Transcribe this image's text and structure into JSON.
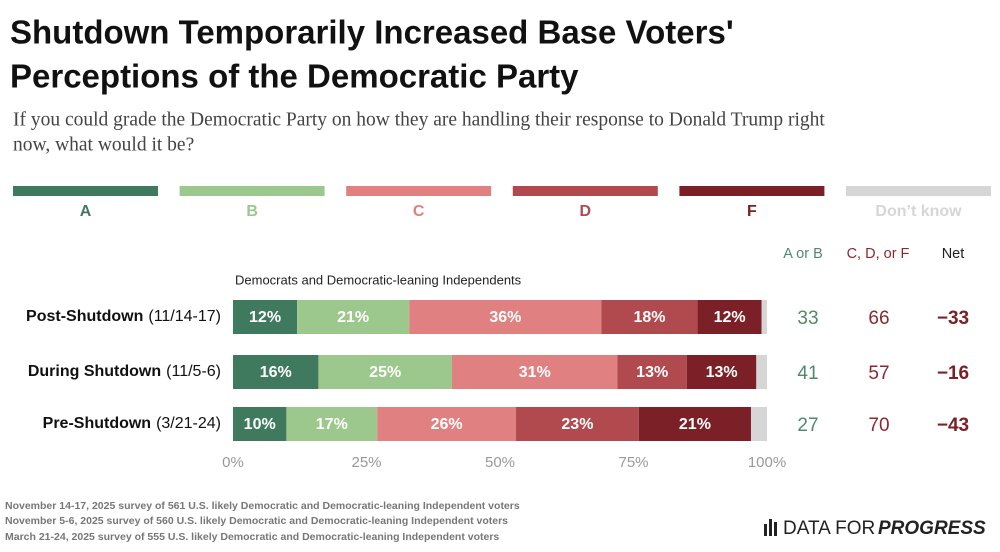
{
  "chart_data": {
    "type": "stacked_bar_horizontal",
    "title": [
      "Shutdown Temporarily Increased Base Voters'",
      "Perceptions of the Democratic Party"
    ],
    "subtitle": [
      "If you could grade the Democratic Party on how they are handling their response to Donald Trump right",
      "now, what would it be?"
    ],
    "group_label": "Democrats and Democratic-leaning Independents",
    "categories": [
      "Post-Shutdown",
      "During Shutdown",
      "Pre-Shutdown"
    ],
    "category_dates": [
      "(11/14-17)",
      "(11/5-6)",
      "(3/21-24)"
    ],
    "series": [
      {
        "name": "A",
        "color": "#3f7a5e",
        "values": [
          12,
          16,
          10
        ],
        "value_labels": [
          "12%",
          "16%",
          "10%"
        ]
      },
      {
        "name": "B",
        "color": "#9dc88d",
        "values": [
          21,
          25,
          17
        ],
        "value_labels": [
          "21%",
          "25%",
          "17%"
        ]
      },
      {
        "name": "C",
        "color": "#e08080",
        "values": [
          36,
          31,
          26
        ],
        "value_labels": [
          "36%",
          "31%",
          "26%"
        ]
      },
      {
        "name": "D",
        "color": "#b14a4e",
        "values": [
          18,
          13,
          23
        ],
        "value_labels": [
          "18%",
          "13%",
          "23%"
        ]
      },
      {
        "name": "F",
        "color": "#7a2026",
        "values": [
          12,
          13,
          21
        ],
        "value_labels": [
          "12%",
          "13%",
          "21%"
        ]
      },
      {
        "name": "Don’t know",
        "color": "#d6d6d6",
        "values": [
          1,
          2,
          3
        ]
      }
    ],
    "xlim": [
      0,
      100
    ],
    "xticks": [
      {
        "value": 0,
        "label": "0%"
      },
      {
        "value": 25,
        "label": "25%"
      },
      {
        "value": 50,
        "label": "50%"
      },
      {
        "value": 75,
        "label": "75%"
      },
      {
        "value": 100,
        "label": "100%"
      }
    ],
    "summary": [
      {
        "name": "A or B",
        "color": "#4f8a6a",
        "values": [
          33,
          41,
          27
        ]
      },
      {
        "name": "C, D, or F",
        "color": "#8a2a30",
        "values": [
          66,
          57,
          70
        ]
      },
      {
        "name": "Net",
        "color": "#7a2026",
        "values": [
          -33,
          -16,
          -43
        ],
        "value_labels": [
          "−33",
          "−16",
          "−43"
        ]
      }
    ],
    "notes": [
      "November 14-17, 2025 survey of 561 U.S. likely Democratic and Democratic-leaning Independent voters",
      "November 5-6, 2025 survey of 560 U.S. likely Democratic and Democratic-leaning Independent voters",
      "March 21-24, 2025 survey of 555 U.S. likely Democratic and Democratic-leaning Independent voters"
    ],
    "logo": [
      "DATA FOR",
      "PROGRESS"
    ]
  }
}
